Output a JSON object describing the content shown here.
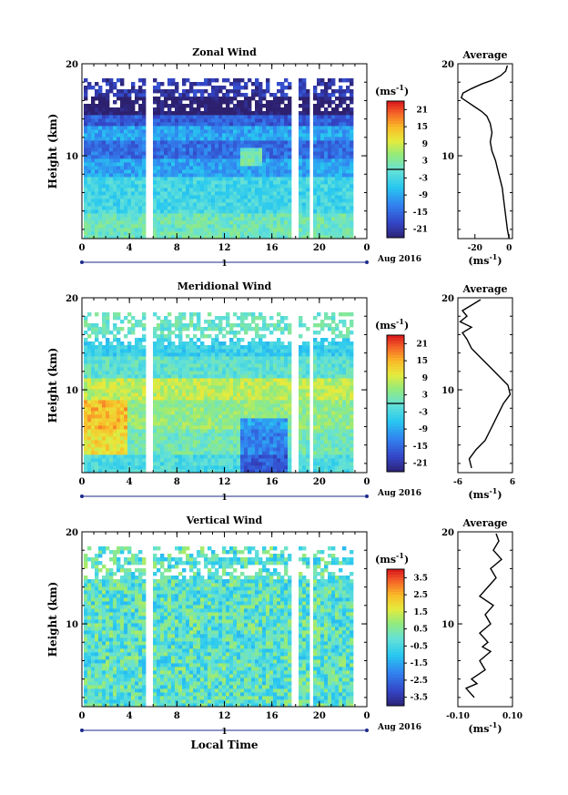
{
  "figure": {
    "background": "#ffffff"
  },
  "chart_data": [
    {
      "type": "heatmap",
      "title": "Zonal Wind",
      "ylabel": "Height (km)",
      "xlabel": "",
      "ylim": [
        1,
        20
      ],
      "yticks": [
        "20",
        "10"
      ],
      "xlim": [
        0,
        24
      ],
      "xticks": [
        "0",
        "4",
        "8",
        "12",
        "16",
        "20",
        "0"
      ],
      "date_label": "1",
      "date_suffix": "Aug 2016",
      "units": "(ms",
      "units_exp": "-1",
      "units_close": ")",
      "colorbar": {
        "range": [
          -24,
          24
        ],
        "ticks": [
          "21",
          "15",
          "9",
          "3",
          "-3",
          "-9",
          "-15",
          "-21"
        ],
        "zero_line": true
      },
      "profile": {
        "title": "Average",
        "xlim": [
          -30,
          2
        ],
        "xticks": [
          "-20",
          "0"
        ],
        "xlabel": "(ms",
        "xlabel_exp": "-1",
        "xlabel_close": ")",
        "ylim": [
          1,
          20
        ],
        "yticks": [
          "20",
          "10"
        ],
        "points": [
          [
            0,
            1.0
          ],
          [
            -1,
            2.0
          ],
          [
            -2,
            3.5
          ],
          [
            -3,
            5.0
          ],
          [
            -4,
            6.5
          ],
          [
            -6,
            8.0
          ],
          [
            -8,
            9.5
          ],
          [
            -10,
            10.5
          ],
          [
            -11,
            11.5
          ],
          [
            -10,
            12.5
          ],
          [
            -11,
            13.5
          ],
          [
            -13,
            14.3
          ],
          [
            -16,
            14.8
          ],
          [
            -20,
            15.3
          ],
          [
            -24,
            15.8
          ],
          [
            -28,
            16.3
          ],
          [
            -27,
            16.8
          ],
          [
            -22,
            17.3
          ],
          [
            -16,
            17.8
          ],
          [
            -10,
            18.2
          ],
          [
            -5,
            18.7
          ],
          [
            -2,
            19.2
          ],
          [
            -1,
            19.8
          ]
        ]
      },
      "field": {
        "white_cols": [
          5.3,
          5.6,
          17.8,
          19.2
        ],
        "regimes": [
          {
            "h0": 0,
            "h1": 4,
            "v": 1.5
          },
          {
            "h0": 4,
            "h1": 8,
            "v": -3
          },
          {
            "h0": 8,
            "h1": 10,
            "v": -9
          },
          {
            "h0": 10,
            "h1": 12,
            "v": -14
          },
          {
            "h0": 12,
            "h1": 13.5,
            "v": -9
          },
          {
            "h0": 13.5,
            "h1": 14.6,
            "v": -16
          },
          {
            "h0": 14.6,
            "h1": 16.8,
            "v": -25
          },
          {
            "h0": 16.8,
            "h1": 18.6,
            "v": -20
          }
        ]
      }
    },
    {
      "type": "heatmap",
      "title": "Meridional Wind",
      "ylabel": "Height (km)",
      "xlabel": "",
      "ylim": [
        1,
        20
      ],
      "yticks": [
        "20",
        "10"
      ],
      "xlim": [
        0,
        24
      ],
      "xticks": [
        "0",
        "4",
        "8",
        "12",
        "16",
        "20",
        "0"
      ],
      "date_label": "1",
      "date_suffix": "Aug 2016",
      "units": "(ms",
      "units_exp": "-1",
      "units_close": ")",
      "colorbar": {
        "range": [
          -24,
          24
        ],
        "ticks": [
          "21",
          "15",
          "9",
          "3",
          "-3",
          "-9",
          "-15",
          "-21"
        ],
        "zero_line": true
      },
      "profile": {
        "title": "Average",
        "xlim": [
          -6,
          6
        ],
        "xticks": [
          "-6",
          "6"
        ],
        "xlabel": "(ms",
        "xlabel_exp": "-1",
        "xlabel_close": ")",
        "ylim": [
          1,
          20
        ],
        "yticks": [
          "20",
          "10"
        ],
        "points": [
          [
            -3,
            1.5
          ],
          [
            -3.5,
            2.5
          ],
          [
            -2,
            3.5
          ],
          [
            0,
            4.5
          ],
          [
            1,
            5.5
          ],
          [
            2,
            6.5
          ],
          [
            3,
            7.5
          ],
          [
            4,
            8.5
          ],
          [
            5.5,
            9.5
          ],
          [
            5,
            10.5
          ],
          [
            3,
            11.5
          ],
          [
            1,
            12.5
          ],
          [
            -1,
            13.5
          ],
          [
            -3,
            14.5
          ],
          [
            -4,
            15.5
          ],
          [
            -5,
            16.2
          ],
          [
            -3,
            16.8
          ],
          [
            -5.5,
            17.4
          ],
          [
            -4,
            18.0
          ],
          [
            -5,
            18.6
          ],
          [
            -3,
            19.2
          ],
          [
            -1,
            19.8
          ]
        ]
      },
      "field": {
        "white_cols": [
          5.3,
          5.6,
          17.8,
          19.2
        ],
        "regimes": [
          {
            "h0": 0,
            "h1": 3,
            "v": -2
          },
          {
            "h0": 3,
            "h1": 6,
            "v": 2
          },
          {
            "h0": 6,
            "h1": 9,
            "v": 5
          },
          {
            "h0": 9,
            "h1": 11.5,
            "v": 8
          },
          {
            "h0": 11.5,
            "h1": 14,
            "v": 0
          },
          {
            "h0": 14,
            "h1": 16,
            "v": -4
          },
          {
            "h0": 16,
            "h1": 18.5,
            "v": 1
          }
        ]
      }
    },
    {
      "type": "heatmap",
      "title": "Vertical Wind",
      "ylabel": "Height (km)",
      "xlabel": "Local Time",
      "ylim": [
        1,
        20
      ],
      "yticks": [
        "20",
        "10"
      ],
      "xlim": [
        0,
        24
      ],
      "xticks": [
        "0",
        "4",
        "8",
        "12",
        "16",
        "20",
        "0"
      ],
      "date_label": "1",
      "date_suffix": "Aug 2016",
      "units": "(ms",
      "units_exp": "-1",
      "units_close": ")",
      "colorbar": {
        "range": [
          -4,
          4
        ],
        "ticks": [
          "3.5",
          "2.5",
          "1.5",
          "0.5",
          "-0.5",
          "-1.5",
          "-2.5",
          "-3.5"
        ],
        "zero_line": false
      },
      "profile": {
        "title": "Average",
        "xlim": [
          -0.1,
          0.1
        ],
        "xticks": [
          "-0.10",
          "0.10"
        ],
        "xlabel": "(ms",
        "xlabel_exp": "-1",
        "xlabel_close": ")",
        "ylim": [
          1,
          20
        ],
        "yticks": [
          "20",
          "10"
        ],
        "points": [
          [
            -0.04,
            2
          ],
          [
            -0.07,
            3
          ],
          [
            -0.03,
            3.5
          ],
          [
            -0.05,
            4
          ],
          [
            0,
            5
          ],
          [
            -0.02,
            6
          ],
          [
            0.02,
            7
          ],
          [
            -0.01,
            7.5
          ],
          [
            0.01,
            8
          ],
          [
            -0.02,
            9
          ],
          [
            0.02,
            10
          ],
          [
            0,
            11
          ],
          [
            0.03,
            12
          ],
          [
            -0.02,
            13
          ],
          [
            0.01,
            14
          ],
          [
            0.04,
            15
          ],
          [
            0.02,
            16
          ],
          [
            0.06,
            17
          ],
          [
            0.03,
            18
          ],
          [
            0.05,
            19
          ],
          [
            0.04,
            19.8
          ]
        ]
      },
      "field": {
        "white_cols": [
          5.3,
          5.6,
          17.8,
          19.2
        ],
        "regimes": [
          {
            "h0": 0,
            "h1": 18.6,
            "v": 0
          }
        ]
      }
    }
  ]
}
